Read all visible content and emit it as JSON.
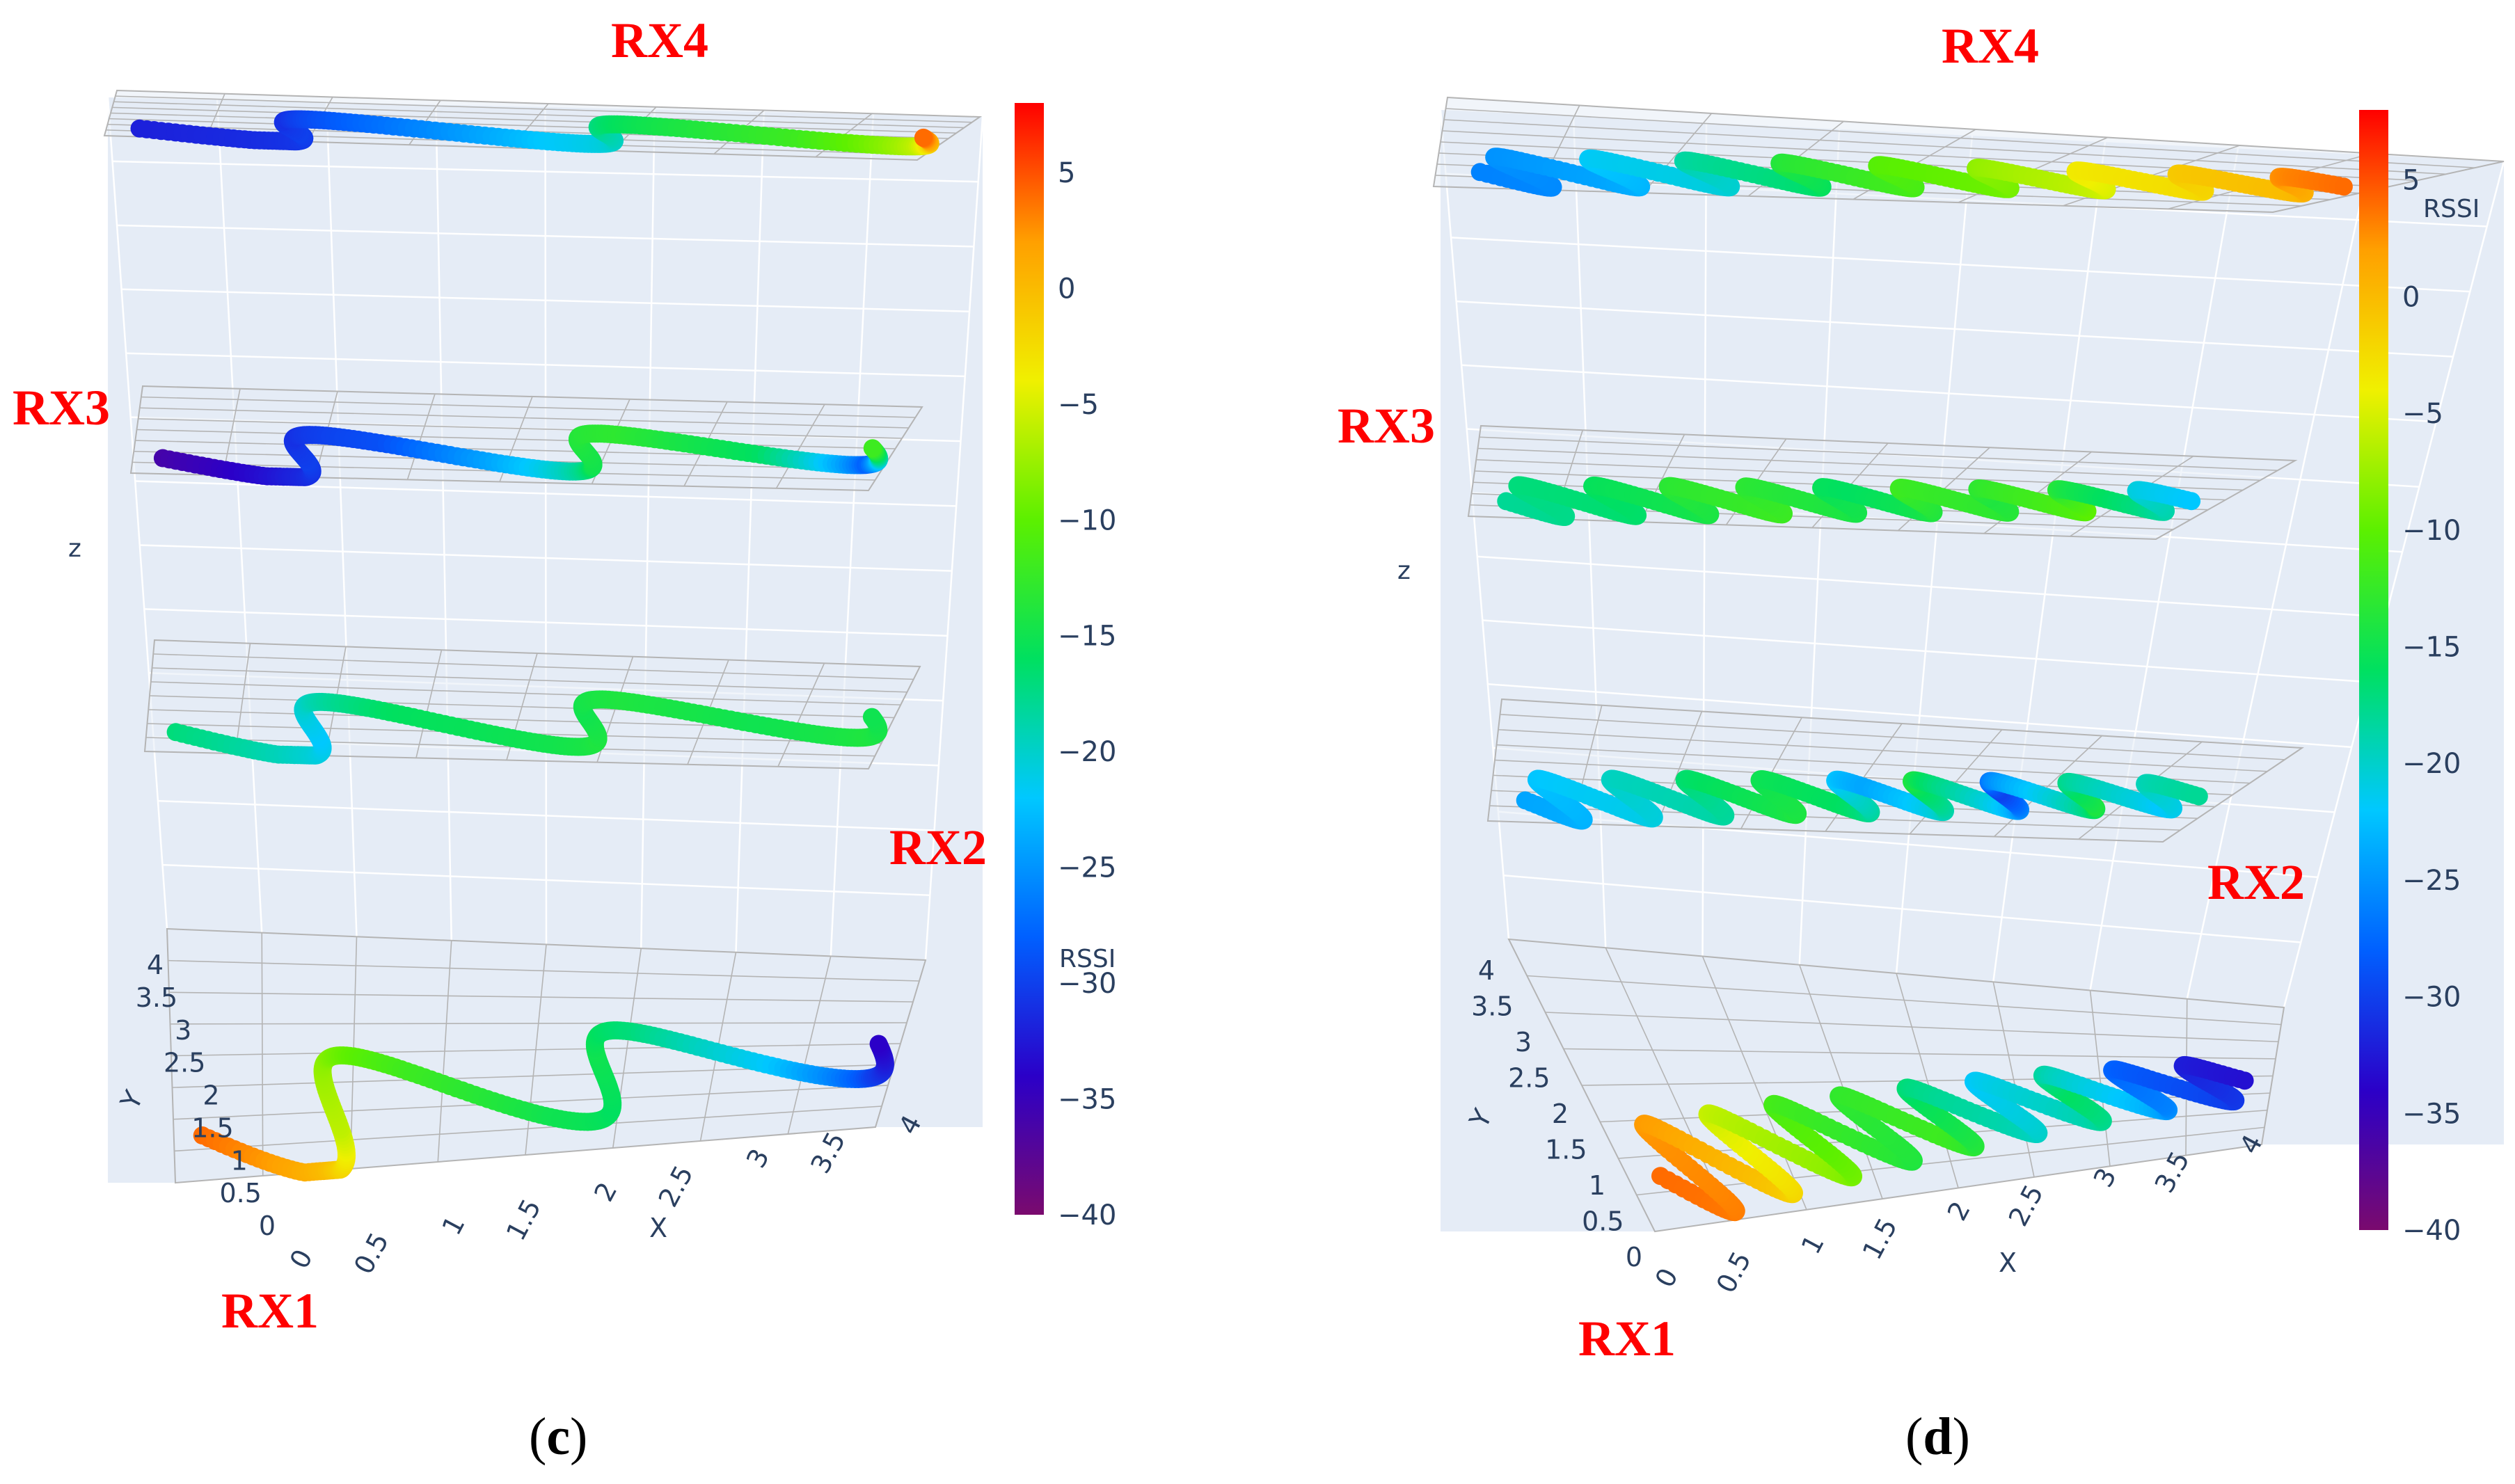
{
  "figure": {
    "panels": [
      {
        "id": "c",
        "caption_open": "(",
        "caption_letter": "c",
        "caption_close": ")",
        "rx_labels": [
          "RX1",
          "RX2",
          "RX3",
          "RX4"
        ],
        "z_axis_label": "z",
        "colorbar_title": "RSSI"
      },
      {
        "id": "d",
        "caption_open": "(",
        "caption_letter": "d",
        "caption_close": ")",
        "rx_labels": [
          "RX1",
          "RX2",
          "RX3",
          "RX4"
        ],
        "z_axis_label": "z",
        "colorbar_title": "RSSI"
      }
    ]
  },
  "colors": {
    "scene_bg": "#e5ecf6",
    "grid": "#b4b4b4",
    "annotation": "#ff0000",
    "colorscale": [
      "#7a0a6e",
      "#2b00c8",
      "#0060ff",
      "#00c8ff",
      "#00e060",
      "#5cf000",
      "#f0f000",
      "#ffa000",
      "#ff0000"
    ]
  },
  "chart_data": [
    {
      "type": "scatter",
      "title": "(c)",
      "xlabel": "X",
      "ylabel": "Y",
      "zlabel": "z",
      "x_ticks": [
        "0",
        "0.5",
        "1",
        "1.5",
        "2",
        "2.5",
        "3",
        "3.5",
        "4"
      ],
      "y_ticks": [
        "0",
        "0.5",
        "1",
        "1.5",
        "2",
        "2.5",
        "3",
        "3.5",
        "4"
      ],
      "xlim": [
        0,
        4
      ],
      "ylim": [
        0,
        4
      ],
      "colorbar": {
        "title": "RSSI",
        "range": [
          -40,
          8
        ],
        "ticks": [
          "5",
          "0",
          "−5",
          "−10",
          "−15",
          "−20",
          "−25",
          "−30",
          "−35",
          "−40"
        ],
        "tick_values": [
          5,
          0,
          -5,
          -10,
          -15,
          -20,
          -25,
          -30,
          -35,
          -40
        ]
      },
      "series": [
        {
          "name": "RX1",
          "waves": 2.5,
          "rssi_profile": [
            4,
            0,
            -6,
            -8,
            -12,
            -15,
            -16,
            -15,
            -17,
            -22,
            -30,
            -34
          ]
        },
        {
          "name": "RX2",
          "waves": 2.5,
          "rssi_profile": [
            -17,
            -20,
            -22,
            -20,
            -16,
            -15,
            -14,
            -15,
            -14,
            -15,
            -14,
            -15
          ]
        },
        {
          "name": "RX3",
          "waves": 2.5,
          "rssi_profile": [
            -36,
            -32,
            -30,
            -31,
            -29,
            -22,
            -15,
            -14,
            -13,
            -16,
            -28,
            -12
          ]
        },
        {
          "name": "RX4",
          "waves": 2.5,
          "rssi_profile": [
            -32,
            -31,
            -30,
            -31,
            -27,
            -22,
            -20,
            -18,
            -15,
            -12,
            -6,
            4
          ]
        }
      ]
    },
    {
      "type": "scatter",
      "title": "(d)",
      "xlabel": "X",
      "ylabel": "Y",
      "zlabel": "z",
      "x_ticks": [
        "0",
        "0.5",
        "1",
        "1.5",
        "2",
        "2.5",
        "3",
        "3.5",
        "4"
      ],
      "y_ticks": [
        "0",
        "0.5",
        "1",
        "1.5",
        "2",
        "2.5",
        "3",
        "3.5",
        "4"
      ],
      "xlim": [
        0,
        4
      ],
      "ylim": [
        0,
        4
      ],
      "colorbar": {
        "title": "RSSI",
        "range": [
          -40,
          8
        ],
        "ticks": [
          "5",
          "0",
          "−5",
          "−10",
          "−15",
          "−20",
          "−25",
          "−30",
          "−35",
          "−40"
        ],
        "tick_values": [
          5,
          0,
          -5,
          -10,
          -15,
          -20,
          -25,
          -30,
          -35,
          -40
        ]
      },
      "series": [
        {
          "name": "RX1",
          "waves": 9,
          "rssi_profile": [
            4,
            2,
            -5,
            -10,
            -14,
            -12,
            -18,
            -22,
            -16,
            -26,
            -30,
            -33
          ]
        },
        {
          "name": "RX2",
          "waves": 9,
          "rssi_profile": [
            -24,
            -22,
            -20,
            -18,
            -14,
            -16,
            -24,
            -14,
            -30,
            -14,
            -22,
            -18
          ]
        },
        {
          "name": "RX3",
          "waves": 9,
          "rssi_profile": [
            -18,
            -17,
            -16,
            -14,
            -12,
            -14,
            -16,
            -12,
            -14,
            -10,
            -18,
            -22
          ]
        },
        {
          "name": "RX4",
          "waves": 9,
          "rssi_profile": [
            -26,
            -25,
            -22,
            -20,
            -16,
            -12,
            -10,
            -8,
            -4,
            -2,
            0,
            4
          ]
        }
      ]
    }
  ]
}
